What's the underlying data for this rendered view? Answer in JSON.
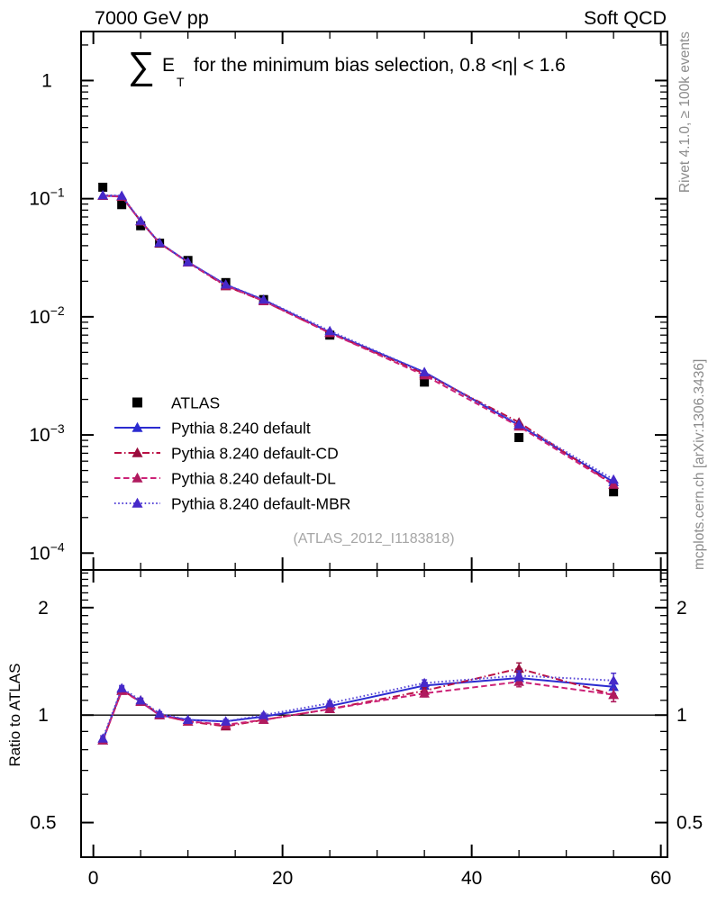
{
  "header": {
    "left": "7000 GeV pp",
    "right": "Soft QCD"
  },
  "title": {
    "sigma": "∑",
    "observable": "E",
    "observable_sub": "T",
    "text": "for the minimum bias selection, 0.8 <η| < 1.6"
  },
  "watermark": "(ATLAS_2012_I1183818)",
  "side_notes": {
    "top": "Rivet 4.1.0, ≥ 100k events",
    "bottom": "mcplots.cern.ch [arXiv:1306.3436]"
  },
  "colors": {
    "frame": "#000000",
    "atlas": "#000000",
    "pythia_default": "#2b2bd0",
    "pythia_cd_line": "#bb1144",
    "pythia_cd_marker": "#990d3d",
    "pythia_dl_line": "#cc2277",
    "pythia_dl_marker": "#b01a5e",
    "pythia_mbr_line": "#5948d8",
    "pythia_mbr_marker": "#4629c9",
    "gray_text": "#8b8b8b",
    "watermark_text": "#a6a6a6"
  },
  "chart_data": {
    "type": "line",
    "x": [
      1,
      3,
      5,
      7,
      10,
      14,
      18,
      25,
      35,
      45,
      55
    ],
    "xlim": [
      -1.3,
      60.7
    ],
    "xminor_step": 5,
    "xmajor_step": 20,
    "xticks": [
      {
        "value": 0,
        "label": "0"
      },
      {
        "value": 20,
        "label": "20"
      },
      {
        "value": 40,
        "label": "40"
      },
      {
        "value": 60,
        "label": "60"
      }
    ],
    "main_panel": {
      "yscale": "log",
      "ylim": [
        7.2e-05,
        2.6
      ],
      "yticks": [
        {
          "value": 1,
          "label": "1"
        },
        {
          "value": 0.1,
          "base": "10",
          "exp": "−1"
        },
        {
          "value": 0.01,
          "base": "10",
          "exp": "−2"
        },
        {
          "value": 0.001,
          "base": "10",
          "exp": "−3"
        },
        {
          "value": 0.0001,
          "base": "10",
          "exp": "−4"
        }
      ],
      "series": [
        {
          "name": "ATLAS",
          "marker": "square",
          "line": "none",
          "color": "#000000",
          "marker_color": "#000000",
          "values": [
            0.125,
            0.089,
            0.059,
            0.042,
            0.03,
            0.0195,
            0.014,
            0.007,
            0.0028,
            0.00095,
            0.00033
          ],
          "yerr": [
            0.004,
            0.003,
            0.002,
            0.0013,
            0.0008,
            0.0006,
            0.0004,
            0.0002,
            0.0001,
            5e-05,
            2e-05
          ]
        },
        {
          "name": "Pythia 8.240 default",
          "marker": "triangle",
          "line": "solid",
          "color": "#2b2bd0",
          "marker_color": "#2b2bd0",
          "values": [
            0.106,
            0.105,
            0.0645,
            0.0421,
            0.0291,
            0.0187,
            0.0139,
            0.0074,
            0.0034,
            0.00121,
            0.0004
          ]
        },
        {
          "name": "Pythia 8.240 default-CD",
          "marker": "triangle",
          "line": "dashdot",
          "color": "#bb1144",
          "marker_color": "#990d3d",
          "values": [
            0.106,
            0.104,
            0.0648,
            0.0421,
            0.0289,
            0.0182,
            0.0136,
            0.0073,
            0.0033,
            0.00128,
            0.00038
          ]
        },
        {
          "name": "Pythia 8.240 default-DL",
          "marker": "triangle",
          "line": "dashed",
          "color": "#cc2277",
          "marker_color": "#b01a5e",
          "values": [
            0.106,
            0.104,
            0.0643,
            0.042,
            0.0289,
            0.0184,
            0.0136,
            0.0073,
            0.0032,
            0.00118,
            0.00038
          ]
        },
        {
          "name": "Pythia 8.240 default-MBR",
          "marker": "triangle",
          "line": "dotted",
          "color": "#5948d8",
          "marker_color": "#4629c9",
          "values": [
            0.107,
            0.106,
            0.065,
            0.0424,
            0.0291,
            0.0188,
            0.014,
            0.0076,
            0.0034,
            0.00123,
            0.00042
          ]
        }
      ]
    },
    "ratio_panel": {
      "ylabel": "Ratio to ATLAS",
      "yscale": "log",
      "ylim": [
        0.4,
        2.55
      ],
      "reference_line": 1,
      "yticks": [
        {
          "value": 2,
          "label": "2"
        },
        {
          "value": 1,
          "label": "1"
        },
        {
          "value": 0.5,
          "label": "0.5"
        }
      ],
      "series": [
        {
          "name": "Pythia 8.240 default",
          "marker": "triangle",
          "line": "solid",
          "color": "#2b2bd0",
          "marker_color": "#2b2bd0",
          "values": [
            0.85,
            1.18,
            1.09,
            1.0,
            0.97,
            0.96,
            0.99,
            1.06,
            1.21,
            1.27,
            1.2
          ],
          "yerr": [
            0.015,
            0.02,
            0.015,
            0.012,
            0.01,
            0.012,
            0.012,
            0.015,
            0.025,
            0.04,
            0.05
          ]
        },
        {
          "name": "Pythia 8.240 default-CD",
          "marker": "triangle",
          "line": "dashdot",
          "color": "#bb1144",
          "marker_color": "#990d3d",
          "values": [
            0.85,
            1.17,
            1.1,
            1.0,
            0.96,
            0.93,
            0.97,
            1.04,
            1.17,
            1.35,
            1.14
          ],
          "yerr": [
            0.015,
            0.02,
            0.015,
            0.012,
            0.01,
            0.012,
            0.012,
            0.015,
            0.025,
            0.05,
            0.05
          ]
        },
        {
          "name": "Pythia 8.240 default-DL",
          "marker": "triangle",
          "line": "dashed",
          "color": "#cc2277",
          "marker_color": "#b01a5e",
          "values": [
            0.85,
            1.17,
            1.09,
            1.0,
            0.96,
            0.94,
            0.97,
            1.04,
            1.15,
            1.24,
            1.14
          ],
          "yerr": [
            0.015,
            0.02,
            0.015,
            0.012,
            0.01,
            0.012,
            0.012,
            0.015,
            0.025,
            0.04,
            0.05
          ]
        },
        {
          "name": "Pythia 8.240 default-MBR",
          "marker": "triangle",
          "line": "dotted",
          "color": "#5948d8",
          "marker_color": "#4629c9",
          "values": [
            0.86,
            1.19,
            1.1,
            1.01,
            0.97,
            0.96,
            1.0,
            1.08,
            1.23,
            1.29,
            1.25
          ],
          "yerr": [
            0.015,
            0.02,
            0.015,
            0.012,
            0.01,
            0.012,
            0.012,
            0.015,
            0.025,
            0.04,
            0.06
          ]
        }
      ]
    }
  }
}
